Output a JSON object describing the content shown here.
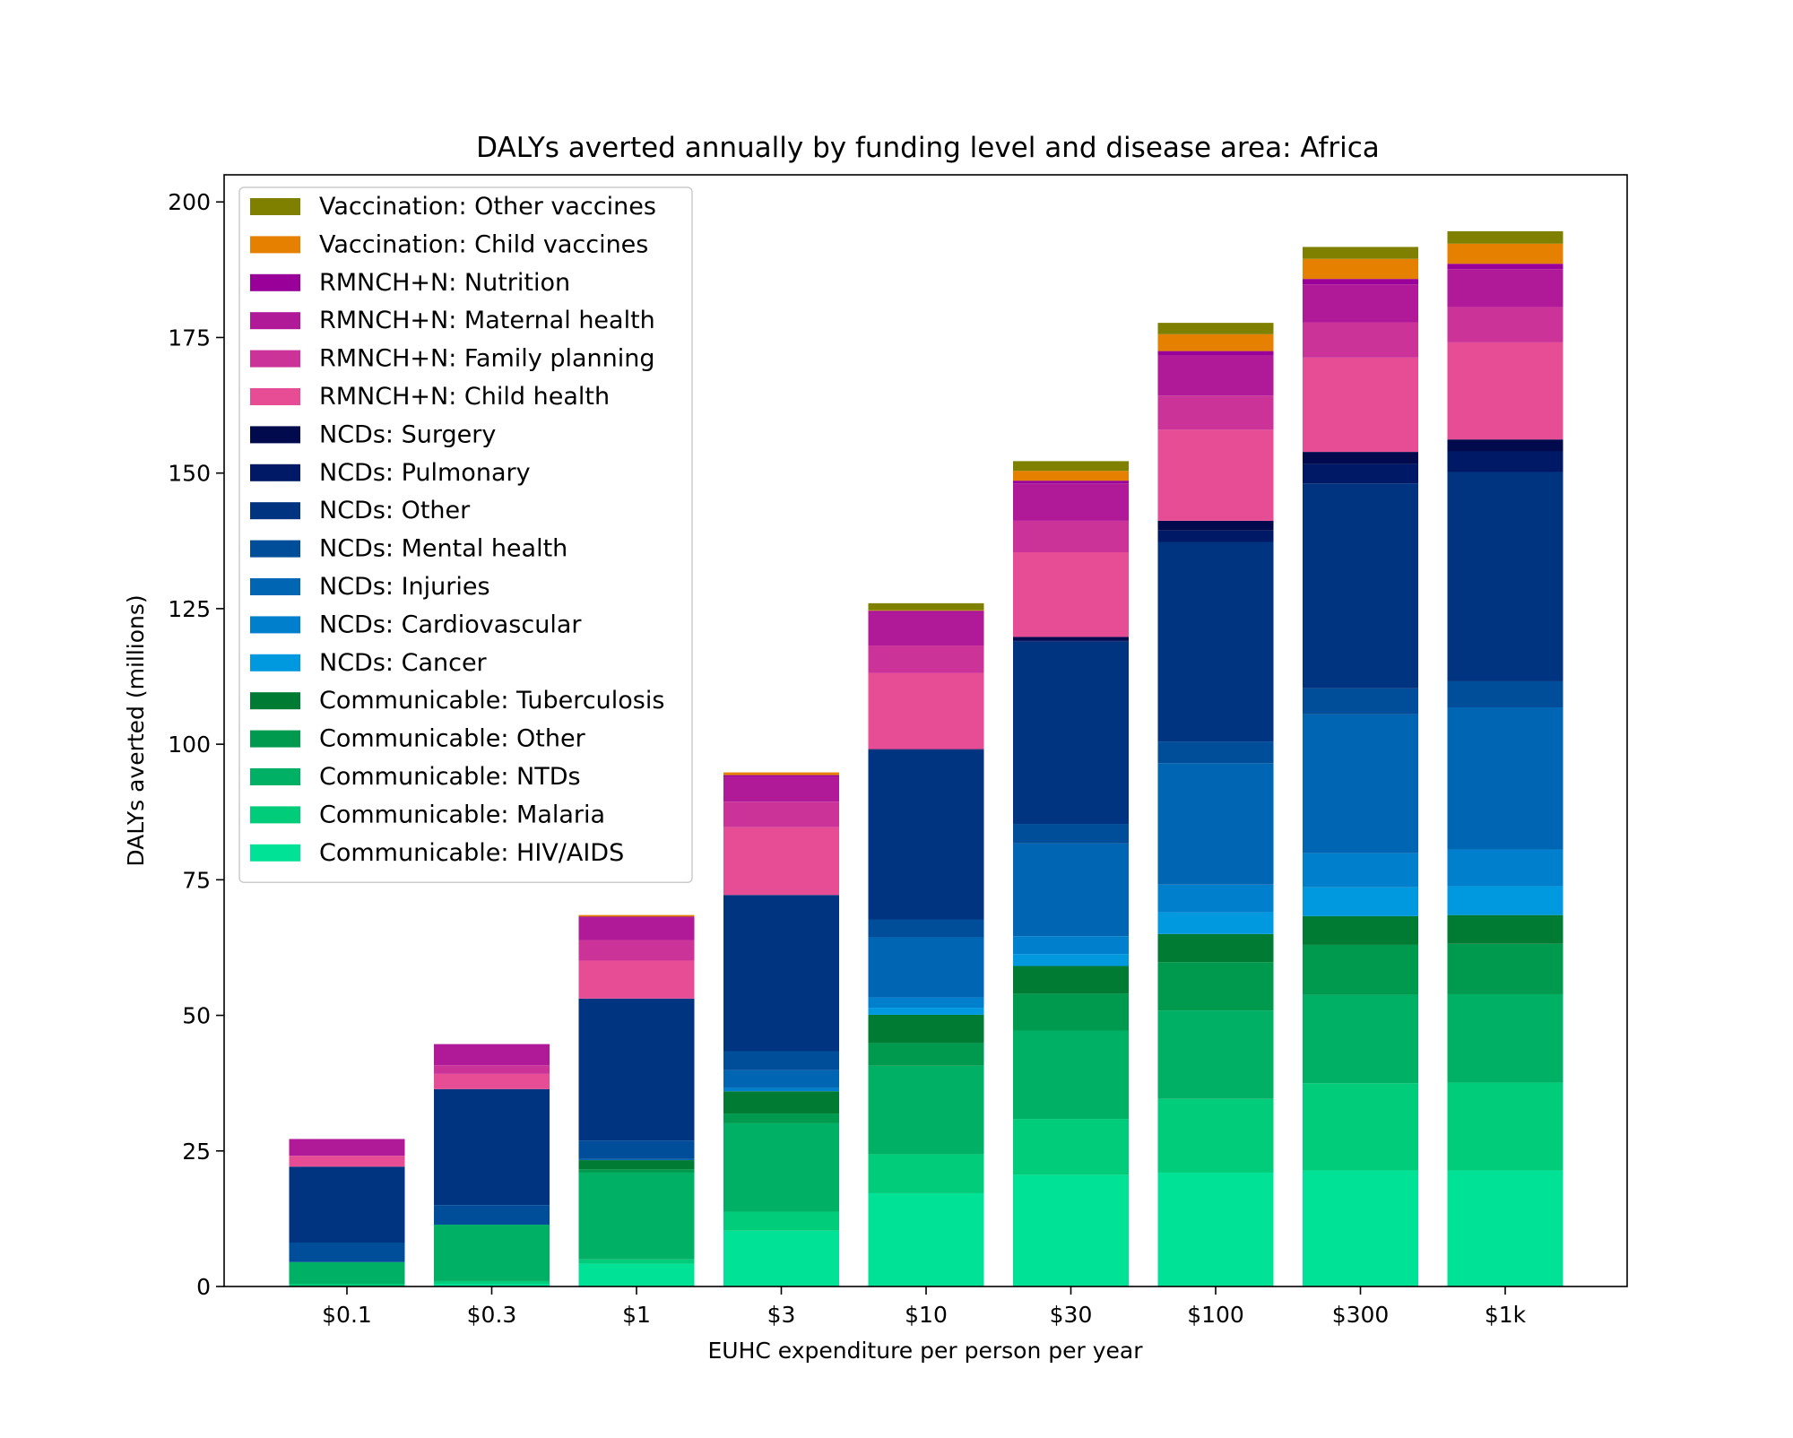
{
  "chart_data": {
    "type": "bar",
    "stacked": true,
    "title": "DALYs averted annually by funding level and disease area: Africa",
    "xlabel": "EUHC expenditure per person per year",
    "ylabel": "DALYs averted (millions)",
    "ylim": [
      0,
      205
    ],
    "yticks": [
      0,
      25,
      50,
      75,
      100,
      125,
      150,
      175,
      200
    ],
    "grid": false,
    "legend_position": "upper-left",
    "categories": [
      "$0.1",
      "$0.3",
      "$1",
      "$3",
      "$10",
      "$30",
      "$100",
      "$300",
      "$1k"
    ],
    "series": [
      {
        "name": "Communicable: HIV/AIDS",
        "color": "#00e396",
        "values": [
          0,
          0.5,
          4.2,
          10.3,
          17.2,
          20.6,
          21.0,
          21.4,
          21.4
        ]
      },
      {
        "name": "Communicable: Malaria",
        "color": "#00cc7a",
        "values": [
          0.5,
          0.5,
          0.8,
          3.5,
          7.2,
          10.3,
          13.6,
          16.1,
          16.2
        ]
      },
      {
        "name": "Communicable: NTDs",
        "color": "#00b064",
        "values": [
          4.0,
          10.4,
          16.0,
          16.3,
          16.3,
          16.3,
          16.3,
          16.3,
          16.3
        ]
      },
      {
        "name": "Communicable: Other",
        "color": "#009a4e",
        "values": [
          0,
          0,
          0.6,
          1.8,
          4.2,
          6.8,
          8.9,
          9.2,
          9.3
        ]
      },
      {
        "name": "Communicable: Tuberculosis",
        "color": "#007b34",
        "values": [
          0,
          0,
          1.7,
          4.1,
          5.2,
          5.1,
          5.2,
          5.3,
          5.3
        ]
      },
      {
        "name": "NCDs: Cancer",
        "color": "#0099e0",
        "values": [
          0,
          0,
          0,
          0,
          1.3,
          2.2,
          4.0,
          5.3,
          5.3
        ]
      },
      {
        "name": "NCDs: Cardiovascular",
        "color": "#0080cc",
        "values": [
          0,
          0,
          0,
          0.6,
          1.9,
          3.3,
          5.1,
          6.3,
          6.8
        ]
      },
      {
        "name": "NCDs: Injuries",
        "color": "#0066b3",
        "values": [
          0,
          0,
          0.2,
          3.3,
          11.1,
          17.1,
          22.4,
          25.6,
          26.2
        ]
      },
      {
        "name": "NCDs: Mental health",
        "color": "#004d99",
        "values": [
          3.6,
          3.6,
          3.4,
          3.5,
          3.3,
          3.6,
          4.0,
          4.8,
          4.8
        ]
      },
      {
        "name": "NCDs: Other",
        "color": "#003380",
        "values": [
          14.0,
          21.4,
          26.2,
          28.8,
          31.2,
          33.6,
          36.8,
          37.8,
          38.6
        ]
      },
      {
        "name": "NCDs: Pulmonary",
        "color": "#001966",
        "values": [
          0,
          0,
          0,
          0,
          0.2,
          0.2,
          2.1,
          3.6,
          3.8
        ]
      },
      {
        "name": "NCDs: Surgery",
        "color": "#000a4d",
        "values": [
          0,
          0,
          0,
          0,
          0,
          0.7,
          1.8,
          2.2,
          2.2
        ]
      },
      {
        "name": "RMNCH+N: Child health",
        "color": "#e64d95",
        "values": [
          2.0,
          2.8,
          7.0,
          12.5,
          14.0,
          15.6,
          16.8,
          17.4,
          17.9
        ]
      },
      {
        "name": "RMNCH+N: Family planning",
        "color": "#cc3399",
        "values": [
          0,
          1.6,
          3.8,
          4.7,
          5.1,
          5.8,
          6.3,
          6.5,
          6.5
        ]
      },
      {
        "name": "RMNCH+N: Maternal health",
        "color": "#b01a99",
        "values": [
          3.1,
          3.9,
          4.1,
          4.6,
          6.2,
          6.9,
          7.4,
          7.0,
          7.0
        ]
      },
      {
        "name": "RMNCH+N: Nutrition",
        "color": "#990099",
        "values": [
          0,
          0,
          0.2,
          0.3,
          0.2,
          0.5,
          0.8,
          1.0,
          1.0
        ]
      },
      {
        "name": "Vaccination: Child vaccines",
        "color": "#e68000",
        "values": [
          0,
          0,
          0.3,
          0.5,
          0.1,
          1.8,
          3.1,
          3.7,
          3.7
        ]
      },
      {
        "name": "Vaccination: Other vaccines",
        "color": "#808000",
        "values": [
          0,
          0,
          0,
          0,
          1.3,
          1.8,
          2.1,
          2.2,
          2.3
        ]
      }
    ]
  }
}
